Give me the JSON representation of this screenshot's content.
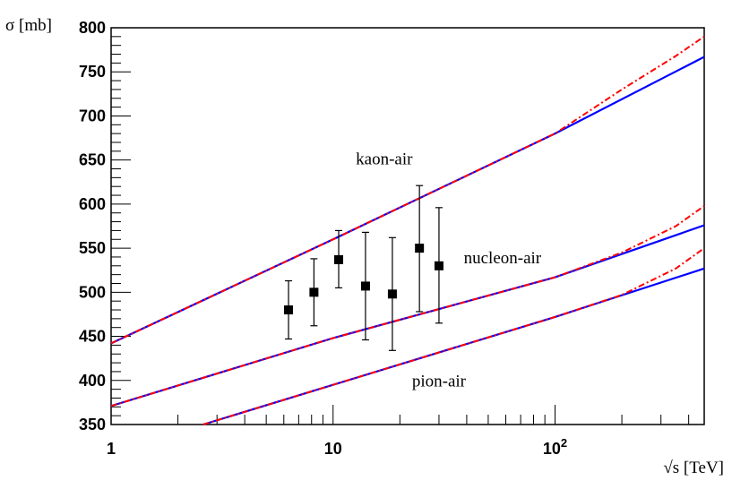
{
  "chart_data": {
    "type": "line",
    "title": "",
    "xlabel": "√s [TeV]",
    "ylabel": "σ [mb]",
    "x_scale": "log",
    "xlim": [
      1,
      470
    ],
    "ylim": [
      350,
      800
    ],
    "x_tick_labels": [
      {
        "value": 1,
        "label": "1"
      },
      {
        "value": 10,
        "label": "10"
      },
      {
        "value": 100,
        "label": "10",
        "sup": "2"
      }
    ],
    "y_ticks": [
      350,
      400,
      450,
      500,
      550,
      600,
      650,
      700,
      750,
      800
    ],
    "grid": false,
    "series": [
      {
        "name": "kaon-air",
        "style": "solid",
        "color": "#0000ff",
        "x": [
          1,
          10,
          100,
          470
        ],
        "y": [
          442,
          560,
          680,
          767
        ]
      },
      {
        "name": "kaon-air",
        "style": "dash-dot",
        "color": "#ff0000",
        "x": [
          1,
          10,
          100,
          200,
          350,
          470
        ],
        "y": [
          442,
          560,
          680,
          730,
          768,
          790
        ]
      },
      {
        "name": "nucleon-air",
        "style": "solid",
        "color": "#0000ff",
        "x": [
          1,
          10,
          100,
          470
        ],
        "y": [
          371,
          448,
          517,
          576
        ]
      },
      {
        "name": "nucleon-air",
        "style": "dash-dot",
        "color": "#ff0000",
        "x": [
          1,
          10,
          100,
          200,
          350,
          470
        ],
        "y": [
          371,
          448,
          517,
          545,
          575,
          598
        ]
      },
      {
        "name": "pion-air",
        "style": "solid",
        "color": "#0000ff",
        "x": [
          2.6,
          10,
          100,
          470
        ],
        "y": [
          350,
          395,
          472,
          527
        ]
      },
      {
        "name": "pion-air",
        "style": "dash-dot",
        "color": "#ff0000",
        "x": [
          2.6,
          10,
          100,
          200,
          350,
          470
        ],
        "y": [
          350,
          395,
          472,
          497,
          527,
          550
        ]
      }
    ],
    "data_points": {
      "marker": "square",
      "color": "#000000",
      "x": [
        6.3,
        8.2,
        10.6,
        14,
        18.5,
        24.5,
        30
      ],
      "y": [
        480,
        500,
        537,
        507,
        498,
        550,
        530
      ],
      "y_low": [
        447,
        462,
        505,
        446,
        434,
        478,
        465
      ],
      "y_high": [
        513,
        538,
        570,
        568,
        562,
        621,
        596
      ]
    },
    "annotations": [
      {
        "text": "kaon-air",
        "x": 17,
        "y": 645
      },
      {
        "text": "nucleon-air",
        "x": 58,
        "y": 533
      },
      {
        "text": "pion-air",
        "x": 30,
        "y": 393
      }
    ]
  }
}
